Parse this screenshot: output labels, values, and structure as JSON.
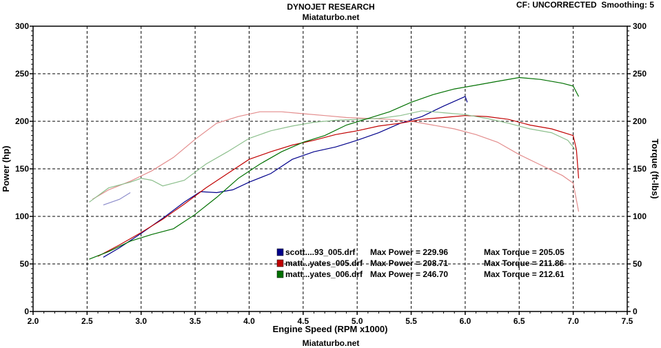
{
  "header": {
    "title": "DYNOJET RESEARCH",
    "subtitle": "Miataturbo.net",
    "settings": "CF: UNCORRECTED  Smoothing: 5",
    "footer": "Miataturbo.net"
  },
  "chart_data": {
    "type": "line",
    "xlabel": "Engine Speed (RPM x1000)",
    "ylabel_left": "Power (hp)",
    "ylabel_right": "Torque (ft-lbs)",
    "xlim": [
      2.0,
      7.5
    ],
    "ylim": [
      0,
      300
    ],
    "x_ticks": [
      "2.0",
      "2.5",
      "3.0",
      "3.5",
      "4.0",
      "4.5",
      "5.0",
      "5.5",
      "6.0",
      "6.5",
      "7.0",
      "7.5"
    ],
    "y_ticks": [
      "0",
      "50",
      "100",
      "150",
      "200",
      "250",
      "300"
    ],
    "grid": true,
    "legend_position": "bottom-center",
    "series": [
      {
        "name": "scott....93_005.drf",
        "max_power_label": "Max Power = 229.96",
        "max_torque_label": "Max Torque = 205.05",
        "color": "#00008b",
        "power": {
          "x": [
            2.65,
            2.8,
            3.0,
            3.2,
            3.4,
            3.55,
            3.7,
            3.85,
            4.0,
            4.2,
            4.4,
            4.6,
            4.8,
            5.0,
            5.2,
            5.4,
            5.6,
            5.8,
            6.0,
            6.02
          ],
          "y": [
            57,
            67,
            82,
            98,
            115,
            126,
            125,
            128,
            136,
            145,
            160,
            168,
            173,
            180,
            188,
            198,
            205,
            216,
            226,
            220
          ]
        },
        "torque": {
          "x": [
            2.65,
            2.8,
            2.9
          ],
          "y": [
            112,
            118,
            125
          ]
        }
      },
      {
        "name": "matt...yates_005.drf",
        "max_power_label": "Max Power = 208.71",
        "max_torque_label": "Max Torque = 211.86",
        "color": "#c00000",
        "power": {
          "x": [
            2.6,
            2.8,
            3.0,
            3.2,
            3.4,
            3.6,
            3.8,
            4.0,
            4.2,
            4.4,
            4.6,
            4.8,
            5.0,
            5.2,
            5.4,
            5.6,
            5.8,
            6.0,
            6.2,
            6.4,
            6.6,
            6.8,
            7.0,
            7.03,
            7.05
          ],
          "y": [
            58,
            70,
            83,
            97,
            113,
            130,
            145,
            160,
            168,
            175,
            180,
            186,
            190,
            195,
            198,
            202,
            204,
            206,
            205,
            202,
            196,
            192,
            185,
            170,
            140
          ]
        },
        "torque": {
          "x": [
            2.55,
            2.7,
            2.9,
            3.1,
            3.3,
            3.5,
            3.7,
            3.9,
            4.1,
            4.3,
            4.5,
            4.7,
            4.9,
            5.1,
            5.3,
            5.5,
            5.7,
            5.9,
            6.1,
            6.3,
            6.5,
            6.7,
            6.9,
            7.0,
            7.05
          ],
          "y": [
            118,
            128,
            137,
            148,
            162,
            181,
            198,
            205,
            210,
            210,
            208,
            206,
            204,
            203,
            202,
            200,
            196,
            192,
            186,
            178,
            165,
            154,
            143,
            135,
            105
          ]
        }
      },
      {
        "name": "matt...yates_006.drf",
        "max_power_label": "Max Power = 246.70",
        "max_torque_label": "Max Torque = 212.61",
        "color": "#007000",
        "power": {
          "x": [
            2.52,
            2.7,
            2.9,
            3.1,
            3.3,
            3.5,
            3.7,
            3.9,
            4.1,
            4.3,
            4.5,
            4.7,
            4.9,
            5.1,
            5.3,
            5.5,
            5.7,
            5.9,
            6.1,
            6.3,
            6.5,
            6.7,
            6.9,
            7.0,
            7.05
          ],
          "y": [
            55,
            63,
            74,
            81,
            87,
            102,
            120,
            140,
            155,
            168,
            178,
            185,
            196,
            203,
            210,
            220,
            228,
            234,
            238,
            242,
            246,
            244,
            240,
            237,
            226
          ]
        },
        "torque": {
          "x": [
            2.52,
            2.7,
            2.9,
            3.0,
            3.1,
            3.2,
            3.4,
            3.6,
            3.8,
            4.0,
            4.2,
            4.4,
            4.6,
            4.8,
            5.0,
            5.2,
            5.4,
            5.6,
            5.8,
            6.0,
            6.2,
            6.4,
            6.6,
            6.8,
            6.95,
            7.02
          ],
          "y": [
            115,
            130,
            136,
            140,
            138,
            132,
            138,
            155,
            168,
            182,
            190,
            195,
            199,
            201,
            202,
            203,
            206,
            211,
            209,
            207,
            203,
            198,
            192,
            188,
            180,
            170
          ]
        }
      }
    ]
  }
}
